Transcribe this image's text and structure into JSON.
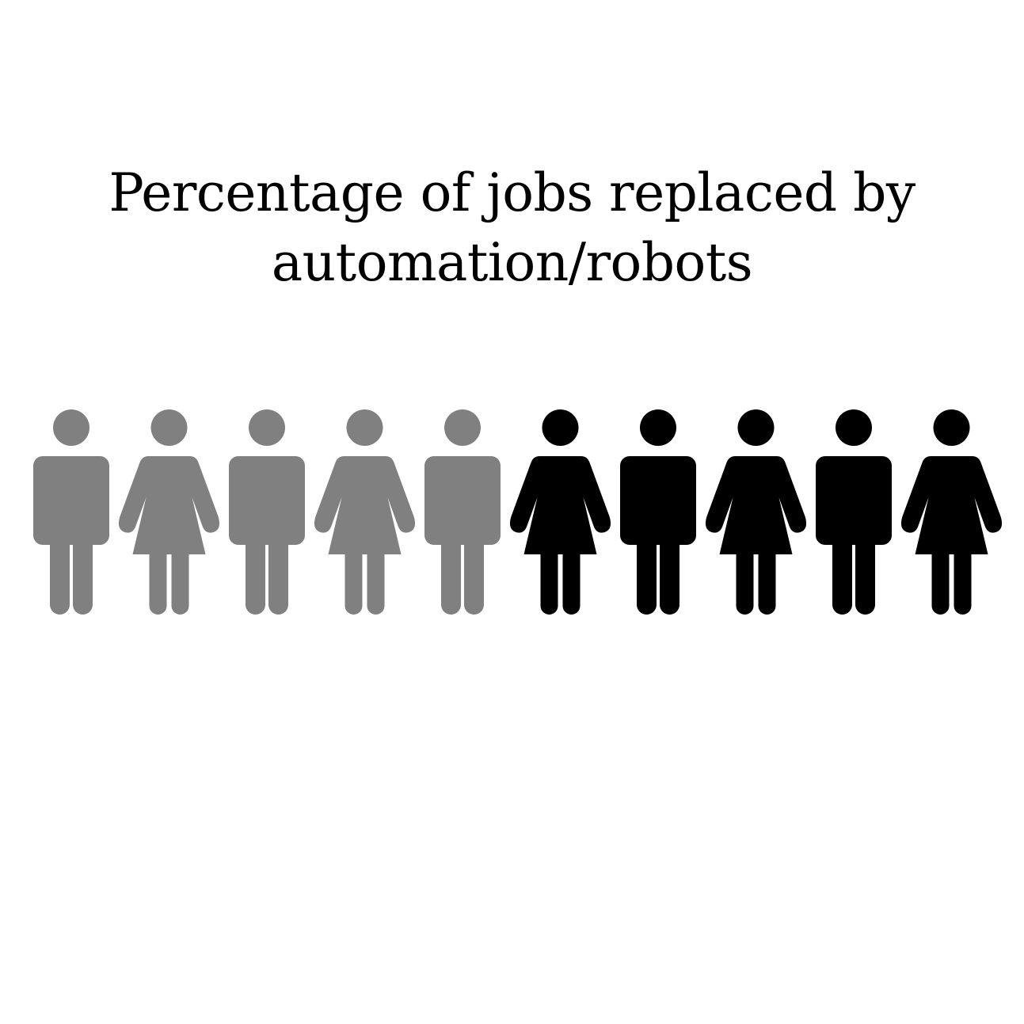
{
  "chart_data": {
    "type": "pictogram",
    "title_lines": [
      "Percentage of jobs replaced by",
      "automation/robots"
    ],
    "total_icons": 10,
    "highlighted_icons": 5,
    "value_percent": 50,
    "icons": [
      {
        "figure": "man",
        "state": "replaced"
      },
      {
        "figure": "woman",
        "state": "replaced"
      },
      {
        "figure": "man",
        "state": "replaced"
      },
      {
        "figure": "woman",
        "state": "replaced"
      },
      {
        "figure": "man",
        "state": "replaced"
      },
      {
        "figure": "woman",
        "state": "remaining"
      },
      {
        "figure": "man",
        "state": "remaining"
      },
      {
        "figure": "woman",
        "state": "remaining"
      },
      {
        "figure": "man",
        "state": "remaining"
      },
      {
        "figure": "woman",
        "state": "remaining"
      }
    ],
    "colors": {
      "replaced": "#808080",
      "remaining": "#000000"
    }
  }
}
